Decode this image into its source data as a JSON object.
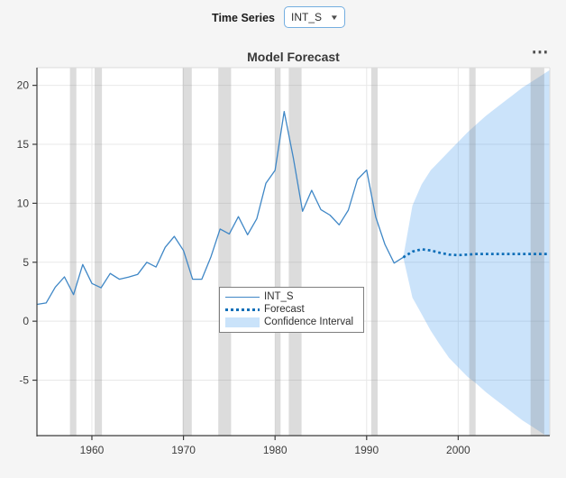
{
  "controls": {
    "time_series_label": "Time Series",
    "dropdown_value": "INT_S",
    "dropdown_arrow": "▼"
  },
  "chart": {
    "title": "Model Forecast",
    "menu_icon": "⋯"
  },
  "legend": {
    "entries": [
      {
        "label": "INT_S",
        "swatch": "line"
      },
      {
        "label": "Forecast",
        "swatch": "dotted"
      },
      {
        "label": "Confidence Interval",
        "swatch": "patch"
      }
    ]
  },
  "colors": {
    "background": "#f5f5f5",
    "plot_background": "#ffffff",
    "series_line": "#3f87c6",
    "forecast_line": "#0d6eb8",
    "ci_fill": "#3d98eb",
    "ci_fill_opacity": 0.27,
    "ci_patch": "#cae3fa",
    "recession_band": "#7d7d7d",
    "recession_band_opacity": 0.27,
    "grid_line": "#e8e8e8",
    "axis_line": "#3c3c3c",
    "box_line": "#dcdcdc",
    "accent_border": "#74aee0"
  },
  "chart_data": {
    "type": "line",
    "title": "Model Forecast",
    "xlabel": "",
    "ylabel": "",
    "xlim": [
      1954,
      2010
    ],
    "ylim": [
      -9.7,
      21.5
    ],
    "x_ticks": [
      1960,
      1970,
      1980,
      1990,
      2000
    ],
    "y_ticks": [
      -5,
      0,
      5,
      10,
      15,
      20
    ],
    "grid": true,
    "legend_position": "lower-center-inside",
    "series": [
      {
        "name": "INT_S",
        "style": "solid",
        "x": [
          1954,
          1955,
          1956,
          1957,
          1958,
          1959,
          1960,
          1961,
          1962,
          1963,
          1964,
          1965,
          1966,
          1967,
          1968,
          1969,
          1970,
          1971,
          1972,
          1973,
          1974,
          1975,
          1976,
          1977,
          1978,
          1979,
          1980,
          1981,
          1982,
          1983,
          1984,
          1985,
          1986,
          1987,
          1988,
          1989,
          1990,
          1991,
          1992,
          1993,
          1994
        ],
        "values": [
          1.43,
          1.55,
          2.89,
          3.76,
          2.25,
          4.81,
          3.2,
          2.83,
          4.05,
          3.56,
          3.74,
          3.97,
          5.0,
          4.59,
          6.27,
          7.19,
          5.99,
          3.56,
          3.56,
          5.47,
          7.82,
          7.4,
          8.87,
          7.33,
          8.68,
          11.69,
          12.79,
          17.78,
          13.83,
          9.32,
          11.1,
          9.46,
          9.0,
          8.17,
          9.42,
          12.02,
          12.81,
          8.83,
          6.51,
          4.93,
          5.42
        ]
      },
      {
        "name": "Forecast",
        "style": "dotted",
        "x": [
          1994,
          1995,
          1996,
          1997,
          1998,
          1999,
          2000,
          2001,
          2002,
          2003,
          2004,
          2005,
          2006,
          2007,
          2008,
          2009,
          2010
        ],
        "values": [
          5.42,
          5.9,
          6.1,
          6.0,
          5.8,
          5.65,
          5.6,
          5.65,
          5.7,
          5.7,
          5.7,
          5.7,
          5.7,
          5.7,
          5.7,
          5.7,
          5.7
        ]
      }
    ],
    "confidence_interval": {
      "name": "Confidence Interval",
      "x": [
        1994,
        1995,
        1996,
        1997,
        1998,
        1999,
        2000,
        2001,
        2002,
        2003,
        2004,
        2005,
        2006,
        2007,
        2008,
        2009,
        2010
      ],
      "lower": [
        5.42,
        2.0,
        0.6,
        -0.8,
        -2.0,
        -3.1,
        -3.9,
        -4.7,
        -5.3,
        -6.0,
        -6.6,
        -7.2,
        -7.8,
        -8.4,
        -8.9,
        -9.4,
        -9.9
      ],
      "upper": [
        5.42,
        9.8,
        11.6,
        12.8,
        13.6,
        14.4,
        15.2,
        16.0,
        16.7,
        17.4,
        18.0,
        18.6,
        19.2,
        19.8,
        20.3,
        20.8,
        21.3
      ]
    },
    "recession_bands": [
      [
        1957.6,
        1958.3
      ],
      [
        1960.3,
        1961.1
      ],
      [
        1969.9,
        1970.9
      ],
      [
        1973.8,
        1975.2
      ],
      [
        1980.0,
        1980.6
      ],
      [
        1981.5,
        1982.9
      ],
      [
        1990.5,
        1991.2
      ],
      [
        2001.2,
        2001.9
      ],
      [
        2007.9,
        2009.4
      ]
    ]
  }
}
